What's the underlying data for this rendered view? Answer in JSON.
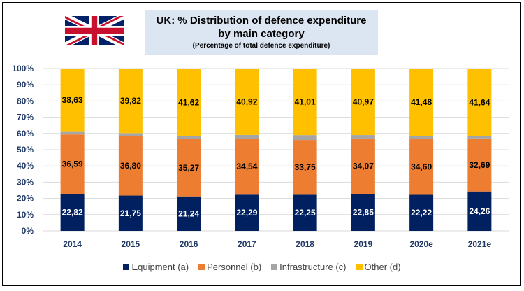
{
  "header": {
    "title_line1": "UK:  % Distribution  of defence expenditure",
    "title_line2": "by main category",
    "subtitle": "(Percentage of total defence expenditure)",
    "flag": "uk-flag-icon"
  },
  "colors": {
    "equipment": "#002060",
    "personnel": "#ed7d31",
    "infrastructure": "#a5a5a5",
    "other": "#ffc000",
    "title_bg": "#dce6f2",
    "axis_text": "#1f3864"
  },
  "chart_data": {
    "type": "bar",
    "stacked": true,
    "percent": true,
    "title": "UK:  % Distribution  of defence expenditure by main category",
    "subtitle": "(Percentage of total defence expenditure)",
    "xlabel": "",
    "ylabel": "",
    "ylim": [
      0,
      100
    ],
    "yticks": [
      "0%",
      "10%",
      "20%",
      "30%",
      "40%",
      "50%",
      "60%",
      "70%",
      "80%",
      "90%",
      "100%"
    ],
    "grid": true,
    "legend_position": "bottom",
    "categories": [
      "2014",
      "2015",
      "2016",
      "2017",
      "2018",
      "2019",
      "2020e",
      "2021e"
    ],
    "series": [
      {
        "name": "Equipment (a)",
        "key": "equipment",
        "values": [
          22.82,
          21.75,
          21.24,
          22.29,
          22.25,
          22.85,
          22.22,
          24.26
        ],
        "labels": [
          "22,82",
          "21,75",
          "21,24",
          "22,29",
          "22,25",
          "22,85",
          "22,22",
          "24,26"
        ],
        "label_color": "#ffffff"
      },
      {
        "name": "Personnel (b)",
        "key": "personnel",
        "values": [
          36.59,
          36.8,
          35.27,
          34.54,
          33.75,
          34.07,
          34.6,
          32.69
        ],
        "labels": [
          "36,59",
          "36,80",
          "35,27",
          "34,54",
          "33,75",
          "34,07",
          "34,60",
          "32,69"
        ],
        "label_color": "#000000"
      },
      {
        "name": "Infrastructure (c)",
        "key": "infrastructure",
        "values": [
          1.96,
          1.63,
          1.87,
          2.25,
          2.99,
          2.11,
          1.7,
          1.41
        ],
        "labels": null,
        "label_color": null
      },
      {
        "name": "Other (d)",
        "key": "other",
        "values": [
          38.63,
          39.82,
          41.62,
          40.92,
          41.01,
          40.97,
          41.48,
          41.64
        ],
        "labels": [
          "38,63",
          "39,82",
          "41,62",
          "40,92",
          "41,01",
          "40,97",
          "41,48",
          "41,64"
        ],
        "label_color": "#000000"
      }
    ]
  }
}
